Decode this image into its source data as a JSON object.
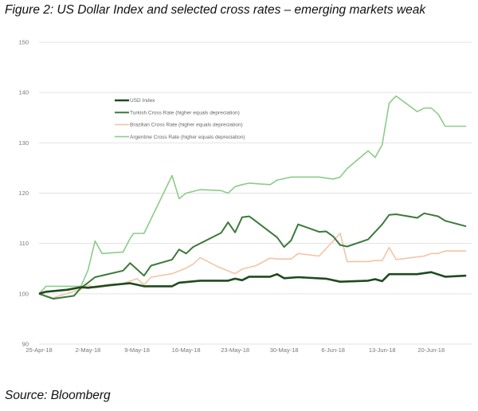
{
  "title": "Figure 2: US Dollar Index and selected cross rates – emerging markets weak",
  "source": "Source: Bloomberg",
  "chart_data": {
    "type": "line",
    "title": "Figure 2: US Dollar Index and selected cross rates – emerging markets weak",
    "xlabel": "",
    "ylabel": "",
    "x_unit": "days since 25-Apr-18",
    "xlim": [
      0,
      62
    ],
    "ylim": [
      90,
      150
    ],
    "yticks": [
      90,
      100,
      110,
      120,
      130,
      140,
      150
    ],
    "xticks": [
      {
        "day": 0,
        "label": "25-Apr-18"
      },
      {
        "day": 7,
        "label": "2-May-18"
      },
      {
        "day": 14,
        "label": "9-May-18"
      },
      {
        "day": 21,
        "label": "16-May-18"
      },
      {
        "day": 28,
        "label": "23-May-18"
      },
      {
        "day": 35,
        "label": "30-May-18"
      },
      {
        "day": 42,
        "label": "6-Jun-18"
      },
      {
        "day": 49,
        "label": "13-Jun-18"
      },
      {
        "day": 56,
        "label": "20-Jun-18"
      }
    ],
    "grid": true,
    "legend_position": "top-left",
    "series": [
      {
        "name": "USD Index",
        "color": "#1f4a1f",
        "width": 2.6,
        "points": [
          [
            0,
            100
          ],
          [
            1,
            100.4
          ],
          [
            4,
            100.8
          ],
          [
            6,
            101.3
          ],
          [
            7,
            101.2
          ],
          [
            10,
            101.7
          ],
          [
            13,
            102.1
          ],
          [
            15,
            101.5
          ],
          [
            19,
            101.5
          ],
          [
            20,
            102.2
          ],
          [
            23,
            102.6
          ],
          [
            27,
            102.6
          ],
          [
            28,
            103
          ],
          [
            29,
            102.7
          ],
          [
            30,
            103.4
          ],
          [
            33,
            103.4
          ],
          [
            34,
            103.9
          ],
          [
            35,
            103.1
          ],
          [
            37,
            103.3
          ],
          [
            41,
            103
          ],
          [
            43,
            102.4
          ],
          [
            47,
            102.6
          ],
          [
            48,
            102.9
          ],
          [
            49,
            102.5
          ],
          [
            50,
            103.9
          ],
          [
            54,
            103.9
          ],
          [
            56,
            104.3
          ],
          [
            58,
            103.4
          ],
          [
            61,
            103.6
          ]
        ]
      },
      {
        "name": "Turkish Cross Rate (higher equals depreciation)",
        "color": "#3b7a3b",
        "width": 2,
        "points": [
          [
            0,
            100
          ],
          [
            2,
            99
          ],
          [
            5,
            99.6
          ],
          [
            6,
            101.2
          ],
          [
            7,
            102.2
          ],
          [
            8,
            103.3
          ],
          [
            12,
            104.6
          ],
          [
            13,
            106.1
          ],
          [
            15,
            103.6
          ],
          [
            16,
            105.6
          ],
          [
            19,
            106.8
          ],
          [
            20,
            108.8
          ],
          [
            21,
            108
          ],
          [
            22,
            109.3
          ],
          [
            26,
            112.1
          ],
          [
            27,
            114.2
          ],
          [
            28,
            112.2
          ],
          [
            29,
            115.2
          ],
          [
            30,
            115.4
          ],
          [
            30.5,
            114.9
          ],
          [
            34,
            111.2
          ],
          [
            35,
            109.3
          ],
          [
            36,
            110.6
          ],
          [
            37,
            113.8
          ],
          [
            40,
            112.3
          ],
          [
            41,
            112.4
          ],
          [
            42,
            111.4
          ],
          [
            43,
            109.7
          ],
          [
            44,
            109.4
          ],
          [
            47,
            110.8
          ],
          [
            49,
            113.8
          ],
          [
            50,
            115.7
          ],
          [
            51,
            115.8
          ],
          [
            54,
            115.1
          ],
          [
            55,
            116
          ],
          [
            56,
            115.7
          ],
          [
            57,
            115.4
          ],
          [
            58,
            114.5
          ],
          [
            61,
            113.4
          ]
        ]
      },
      {
        "name": "Brazilian Cross Rate (higher equals depreciation)",
        "color": "#f4c4a4",
        "width": 1.6,
        "points": [
          [
            0,
            100
          ],
          [
            2,
            99.2
          ],
          [
            6,
            100.9
          ],
          [
            7,
            101.7
          ],
          [
            8,
            101.2
          ],
          [
            11.5,
            101.8
          ],
          [
            14,
            103
          ],
          [
            15,
            101.8
          ],
          [
            16,
            103.3
          ],
          [
            19,
            104
          ],
          [
            21,
            105.1
          ],
          [
            22,
            105.9
          ],
          [
            23,
            107.2
          ],
          [
            25.5,
            105.4
          ],
          [
            28,
            104
          ],
          [
            29,
            104.9
          ],
          [
            31,
            105.6
          ],
          [
            33,
            107.1
          ],
          [
            34,
            106.9
          ],
          [
            36,
            106.9
          ],
          [
            37,
            108
          ],
          [
            40,
            107.5
          ],
          [
            43,
            112
          ],
          [
            44,
            106.4
          ],
          [
            47,
            106.4
          ],
          [
            48,
            106.6
          ],
          [
            49,
            106.6
          ],
          [
            50,
            109.2
          ],
          [
            51,
            106.8
          ],
          [
            55,
            107.5
          ],
          [
            56,
            108
          ],
          [
            57,
            108
          ],
          [
            58,
            108.5
          ],
          [
            61,
            108.5
          ]
        ]
      },
      {
        "name": "Argentine Cross Rate (higher equals depreciation)",
        "color": "#8ccc87",
        "width": 1.6,
        "points": [
          [
            0,
            100
          ],
          [
            1,
            101.5
          ],
          [
            6,
            101.5
          ],
          [
            7,
            104.7
          ],
          [
            8,
            110.5
          ],
          [
            9,
            108
          ],
          [
            12,
            108.3
          ],
          [
            13,
            111
          ],
          [
            13.5,
            112
          ],
          [
            15,
            112
          ],
          [
            19,
            123.5
          ],
          [
            20,
            118.9
          ],
          [
            21,
            120
          ],
          [
            23,
            120.7
          ],
          [
            26,
            120.5
          ],
          [
            27,
            120
          ],
          [
            28,
            121.3
          ],
          [
            29,
            121.7
          ],
          [
            30,
            122
          ],
          [
            33,
            121.7
          ],
          [
            34,
            122.6
          ],
          [
            36,
            123.2
          ],
          [
            40,
            123.2
          ],
          [
            42,
            122.8
          ],
          [
            43,
            123.2
          ],
          [
            44,
            124.9
          ],
          [
            47,
            128.4
          ],
          [
            48,
            127.1
          ],
          [
            49,
            129.6
          ],
          [
            50,
            137.9
          ],
          [
            51,
            139.3
          ],
          [
            54,
            136.2
          ],
          [
            55,
            136.9
          ],
          [
            56,
            136.9
          ],
          [
            57,
            135.7
          ],
          [
            58,
            133.3
          ],
          [
            61,
            133.3
          ]
        ]
      }
    ]
  }
}
